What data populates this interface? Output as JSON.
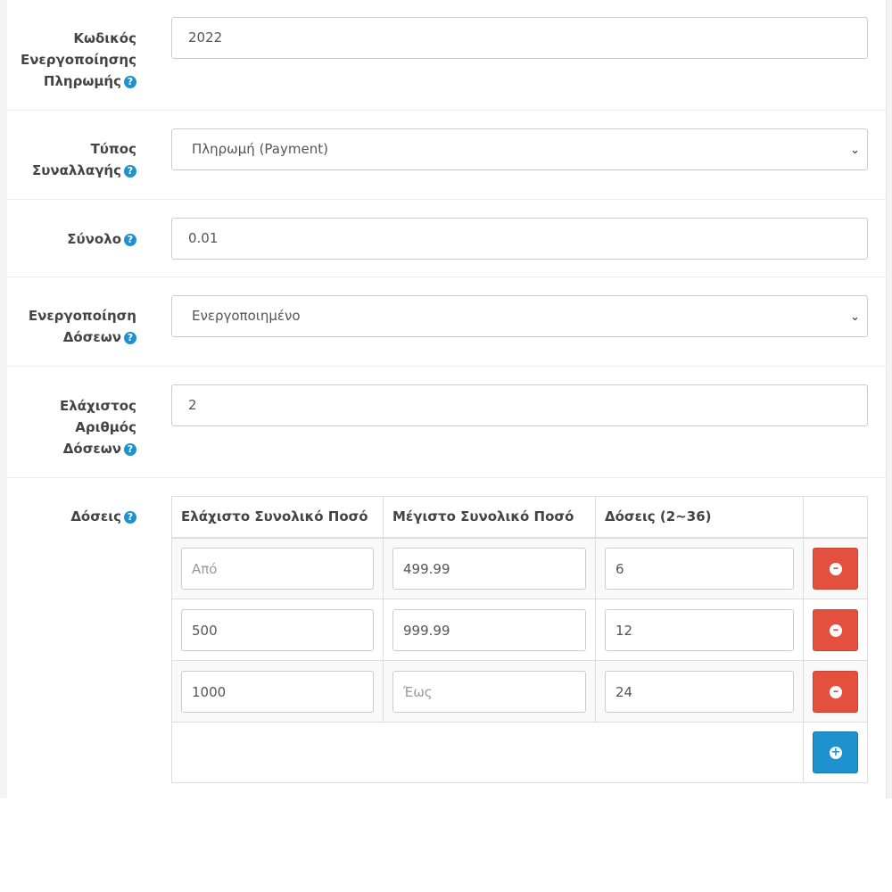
{
  "fields": [
    {
      "label_lines": [
        "Κωδικός",
        "Ενεργοποίησης",
        "Πληρωμής"
      ],
      "value": "2022",
      "type": "text"
    },
    {
      "label_lines": [
        "Τύπος",
        "Συναλλαγής"
      ],
      "value": "Πληρωμή (Payment)",
      "type": "select"
    },
    {
      "label_lines": [
        "Σύνολο"
      ],
      "value": "0.01",
      "type": "text"
    },
    {
      "label_lines": [
        "Ενεργοποίηση",
        "Δόσεων"
      ],
      "value": "Ενεργοποιημένο",
      "type": "select"
    },
    {
      "label_lines": [
        "Ελάχιστος",
        "Αριθμός",
        "Δόσεων"
      ],
      "value": "2",
      "type": "text"
    }
  ],
  "installments": {
    "label": "Δόσεις",
    "headers": [
      "Ελάχιστο Συνολικό Ποσό",
      "Μέγιστο Συνολικό Ποσό",
      "Δόσεις (2~36)"
    ],
    "rows": [
      {
        "min": "",
        "min_placeholder": "Από",
        "max": "499.99",
        "count": "6"
      },
      {
        "min": "500",
        "max": "999.99",
        "count": "12"
      },
      {
        "min": "1000",
        "max": "",
        "max_placeholder": "Έως",
        "count": "24"
      }
    ]
  },
  "icons": {
    "help": "question-circle-icon",
    "remove": "minus-circle-icon",
    "add": "plus-circle-icon"
  },
  "colors": {
    "help": "#1e91cf",
    "remove": "#e3503e",
    "add": "#1e91cf"
  }
}
